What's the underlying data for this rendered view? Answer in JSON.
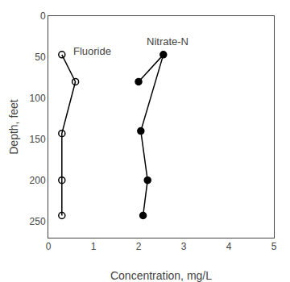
{
  "chart_data": {
    "type": "line",
    "xlabel": "Concentration, mg/L",
    "ylabel": "Depth, feet",
    "series": [
      {
        "x": [
          0.3,
          0.6,
          0.3,
          0.3,
          0.3
        ],
        "values": [
          47,
          80,
          143,
          200,
          243
        ],
        "color": "black",
        "marker": "open"
      },
      {
        "x": [
          2.0,
          2.55,
          2.05,
          2.2,
          2.1
        ],
        "values": [
          80,
          47,
          140,
          200,
          243
        ],
        "color": "black",
        "marker": "filled"
      }
    ],
    "xlim": [
      0,
      5
    ],
    "ylim": [
      270,
      0
    ],
    "xticks": [
      0,
      1,
      2,
      3,
      4,
      5
    ],
    "yticks": [
      0,
      50,
      100,
      150,
      200,
      250
    ],
    "grid": false,
    "annotations": [
      {
        "text": "Fluoride",
        "x": 0.52,
        "y": 33
      },
      {
        "text": "Nitrate-N",
        "x": 2.15,
        "y": 22
      }
    ]
  }
}
